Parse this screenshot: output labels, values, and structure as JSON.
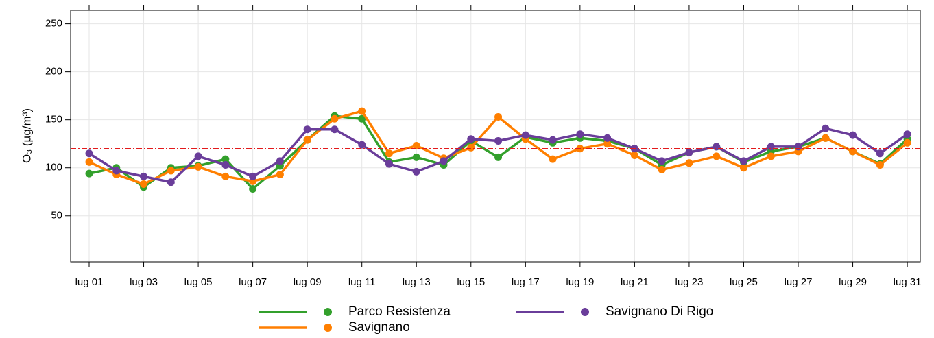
{
  "chart_data": {
    "type": "line",
    "y_label": "O₃ (µg/m³)",
    "categories": [
      "lug 01",
      null,
      "lug 03",
      null,
      "lug 05",
      null,
      "lug 07",
      null,
      "lug 09",
      null,
      "lug 11",
      null,
      "lug 13",
      null,
      "lug 15",
      null,
      "lug 17",
      null,
      "lug 19",
      null,
      "lug 21",
      null,
      "lug 23",
      null,
      "lug 25",
      null,
      "lug 27",
      null,
      "lug 29",
      null,
      "lug 31"
    ],
    "series": [
      {
        "name": "Parco Resistenza",
        "color": "#33a02c",
        "values": [
          94,
          100,
          80,
          100,
          102,
          109,
          78,
          102,
          129,
          154,
          151,
          106,
          111,
          103,
          128,
          111,
          132,
          126,
          131,
          128,
          120,
          103,
          116,
          122,
          106,
          117,
          122,
          131,
          117,
          104,
          130
        ]
      },
      {
        "name": "Savignano",
        "color": "#ff7f00",
        "values": [
          106,
          93,
          83,
          97,
          101,
          91,
          86,
          93,
          129,
          151,
          159,
          115,
          123,
          110,
          121,
          153,
          130,
          109,
          120,
          125,
          113,
          98,
          105,
          112,
          100,
          112,
          117,
          131,
          117,
          103,
          126
        ]
      },
      {
        "name": "Savignano Di Rigo",
        "color": "#6a3d9a",
        "values": [
          115,
          97,
          91,
          85,
          112,
          103,
          91,
          107,
          140,
          140,
          124,
          104,
          96,
          107,
          130,
          128,
          134,
          129,
          135,
          131,
          120,
          107,
          116,
          122,
          107,
          122,
          122,
          141,
          134,
          115,
          135
        ]
      }
    ],
    "ylim": [
      2,
      264
    ],
    "yticks": [
      50,
      100,
      150,
      200,
      250
    ],
    "grid": true,
    "hline": {
      "value": 120,
      "color": "#e31a1c"
    },
    "legend": "bottom"
  }
}
